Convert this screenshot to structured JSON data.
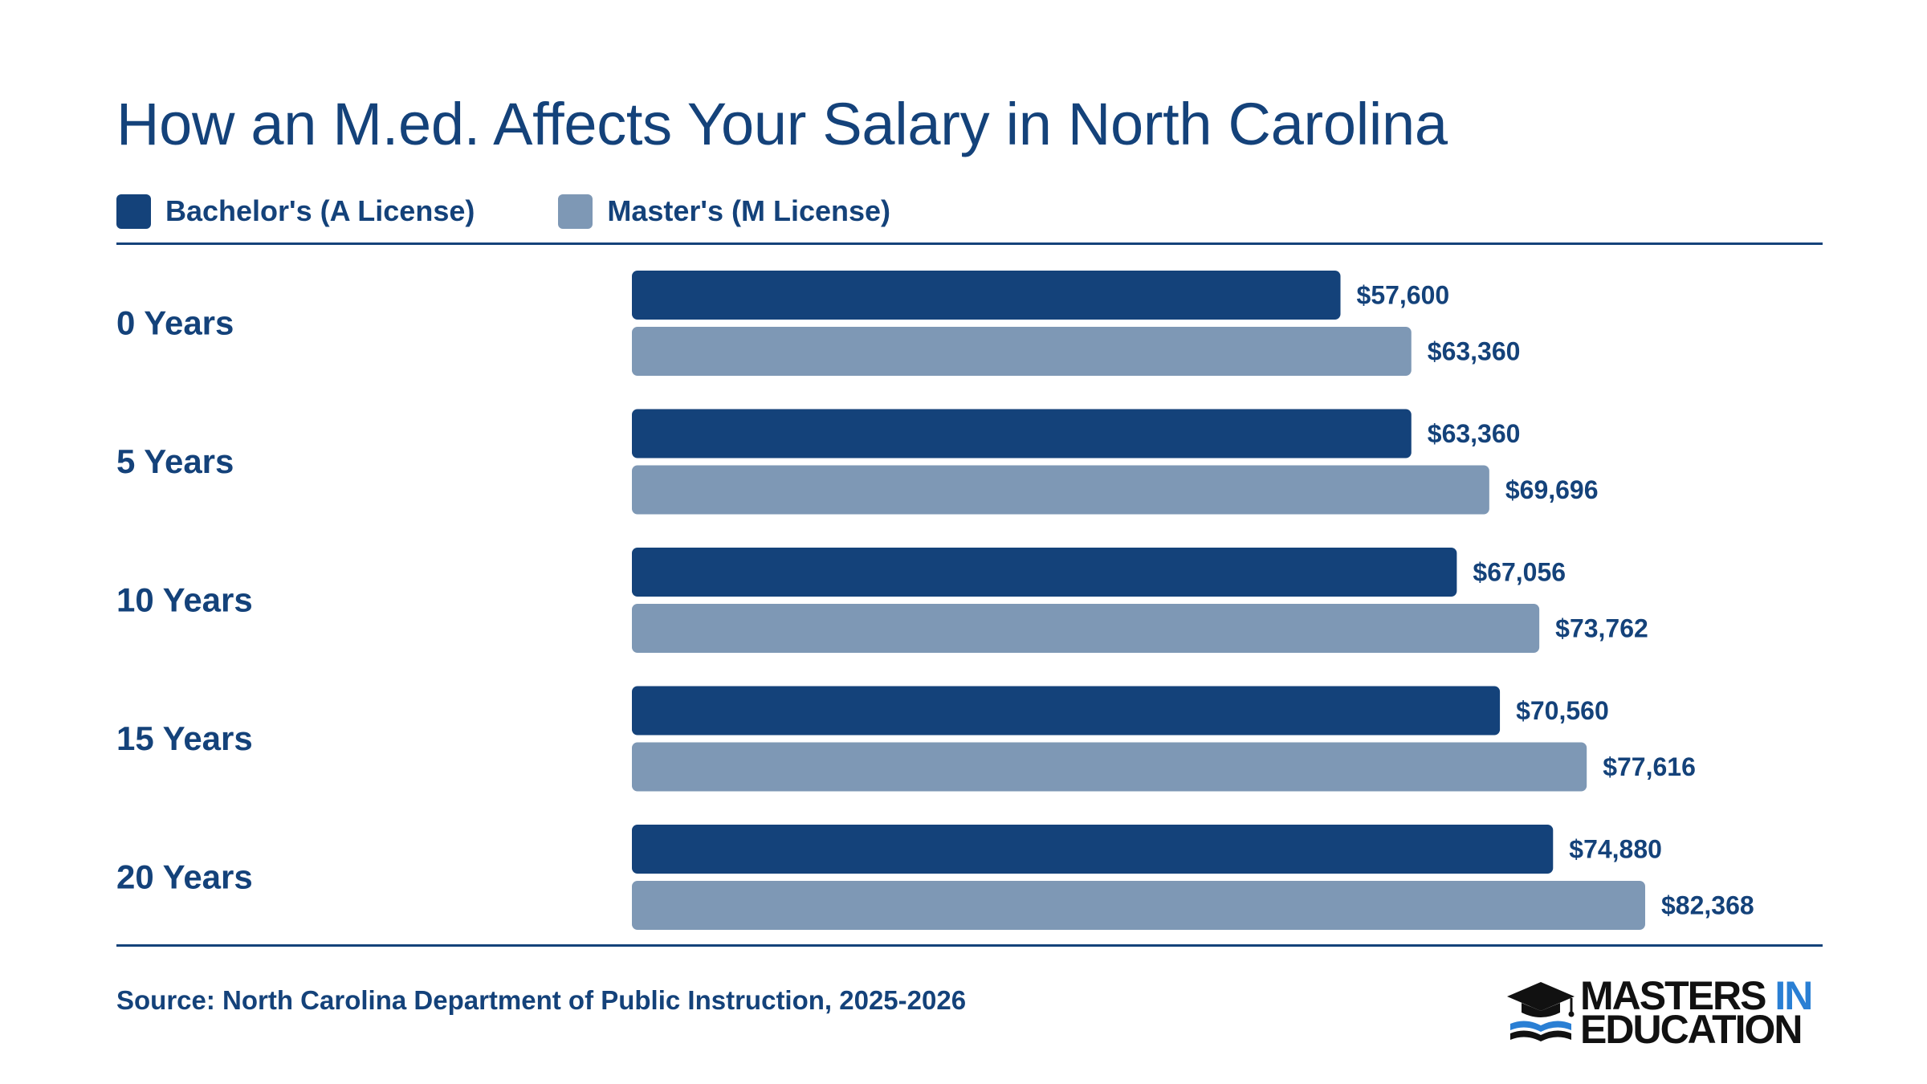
{
  "colors": {
    "bachelor": "#14427a",
    "master": "#7e98b5",
    "text": "#14427a",
    "logo_accent": "#2a7fd4"
  },
  "chart_data": {
    "type": "bar",
    "orientation": "horizontal",
    "title": "How an M.ed. Affects Your Salary in North Carolina",
    "categories": [
      "0 Years",
      "5 Years",
      "10 Years",
      "15 Years",
      "20 Years"
    ],
    "series": [
      {
        "name": "Bachelor's (A License)",
        "values": [
          57600,
          63360,
          67056,
          70560,
          74880
        ],
        "labels": [
          "$57,600",
          "$63,360",
          "$67,056",
          "$70,560",
          "$74,880"
        ]
      },
      {
        "name": "Master's (M License)",
        "values": [
          63360,
          69696,
          73762,
          77616,
          82368
        ],
        "labels": [
          "$63,360",
          "$69,696",
          "$73,762",
          "$77,616",
          "$82,368"
        ]
      }
    ],
    "xlim": [
      0,
      82368
    ],
    "grid": false,
    "legend_position": "top-left"
  },
  "source": "Source: North Carolina Department of Public Instruction, 2025-2026",
  "logo": {
    "line1": "MASTERS",
    "line1_accent": "IN",
    "line2": "EDUCATION",
    "icon": "graduation-cap-book-icon"
  }
}
